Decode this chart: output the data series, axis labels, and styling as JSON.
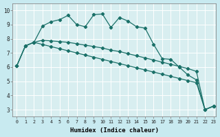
{
  "xlabel": "Humidex (Indice chaleur)",
  "background_color": "#c8eaf0",
  "grid_color": "#ffffff",
  "line_color": "#1a7068",
  "xlim_min": -0.5,
  "xlim_max": 23.3,
  "ylim_min": 2.5,
  "ylim_max": 10.5,
  "xticks": [
    0,
    1,
    2,
    3,
    4,
    5,
    6,
    7,
    8,
    9,
    10,
    11,
    12,
    13,
    14,
    15,
    16,
    17,
    18,
    19,
    20,
    21,
    22,
    23
  ],
  "yticks": [
    3,
    4,
    5,
    6,
    7,
    8,
    9,
    10
  ],
  "series1_x": [
    0,
    1,
    2,
    3,
    4,
    5,
    6,
    7,
    8,
    9,
    10,
    11,
    12,
    13,
    14,
    15,
    16,
    17,
    18,
    19,
    20,
    21,
    22,
    23
  ],
  "series1_y": [
    6.1,
    7.5,
    7.75,
    8.9,
    9.2,
    9.35,
    9.65,
    9.0,
    8.85,
    9.7,
    9.75,
    8.8,
    9.5,
    9.25,
    8.85,
    8.75,
    7.6,
    6.6,
    6.55,
    6.0,
    5.45,
    5.1,
    3.0,
    3.25
  ],
  "series2_x": [
    0,
    1,
    2,
    3,
    4,
    5,
    6,
    7,
    8,
    9,
    10,
    11,
    12,
    13,
    14,
    15,
    16,
    17,
    18,
    19,
    20,
    21,
    22,
    23
  ],
  "series2_y": [
    6.1,
    7.5,
    7.75,
    7.9,
    7.85,
    7.8,
    7.75,
    7.65,
    7.55,
    7.45,
    7.35,
    7.2,
    7.1,
    6.95,
    6.8,
    6.65,
    6.5,
    6.35,
    6.2,
    6.05,
    5.9,
    5.7,
    3.0,
    3.25
  ],
  "series3_x": [
    0,
    1,
    2,
    3,
    4,
    5,
    6,
    7,
    8,
    9,
    10,
    11,
    12,
    13,
    14,
    15,
    16,
    17,
    18,
    19,
    20,
    21,
    22,
    23
  ],
  "series3_y": [
    6.1,
    7.5,
    7.75,
    7.6,
    7.45,
    7.3,
    7.15,
    7.0,
    6.85,
    6.7,
    6.55,
    6.4,
    6.25,
    6.1,
    5.95,
    5.8,
    5.65,
    5.5,
    5.35,
    5.2,
    5.05,
    4.9,
    3.0,
    3.25
  ]
}
